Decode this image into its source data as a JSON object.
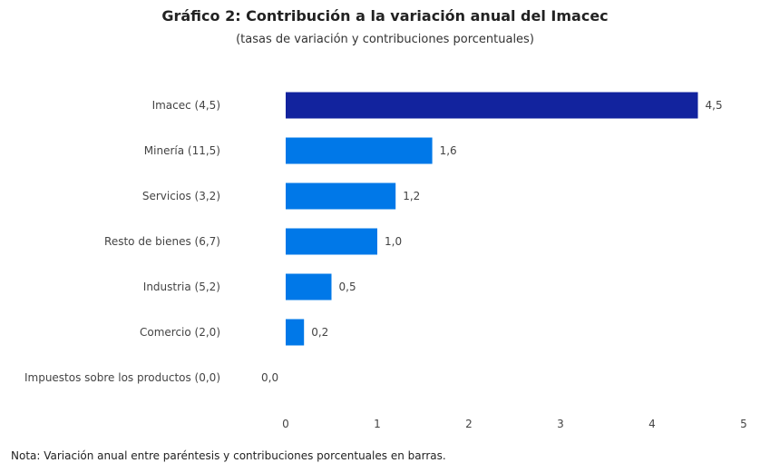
{
  "chart_data": {
    "type": "bar",
    "orientation": "horizontal",
    "title": "Gráfico 2: Contribución a la variación anual del Imacec",
    "subtitle": "(tasas de variación y contribuciones porcentuales)",
    "categories": [
      "Imacec (4,5)",
      "Minería (11,5)",
      "Servicios (3,2)",
      "Resto de bienes (6,7)",
      "Industria (5,2)",
      "Comercio (2,0)",
      "Impuestos sobre los productos (0,0)"
    ],
    "values": [
      4.5,
      1.6,
      1.2,
      1.0,
      0.5,
      0.2,
      0.0
    ],
    "value_labels": [
      "4,5",
      "1,6",
      "1,2",
      "1,0",
      "0,5",
      "0,2",
      "0,0"
    ],
    "colors": [
      "#12239e",
      "#0078e8",
      "#0078e8",
      "#0078e8",
      "#0078e8",
      "#0078e8",
      "#0078e8"
    ],
    "xlim": [
      0,
      5
    ],
    "xticks": [
      0,
      1,
      2,
      3,
      4,
      5
    ],
    "xtick_labels": [
      "0",
      "1",
      "2",
      "3",
      "4",
      "5"
    ],
    "xlabel": "",
    "ylabel": "",
    "grid": false,
    "legend": "none",
    "note": "Nota: Variación anual entre paréntesis y contribuciones porcentuales en barras."
  }
}
